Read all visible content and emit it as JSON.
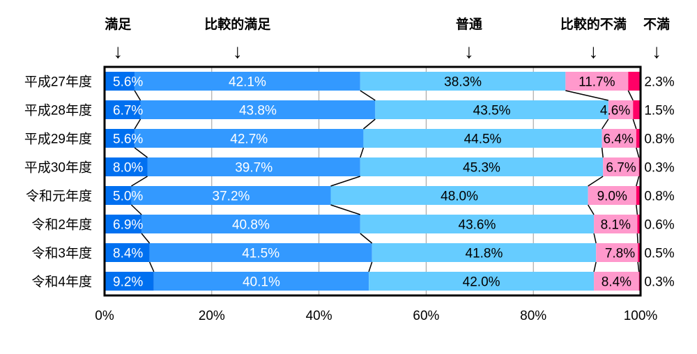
{
  "chart_data": {
    "type": "bar",
    "orientation": "horizontal",
    "stacked": true,
    "percent": true,
    "categories": [
      "平成27年度",
      "平成28年度",
      "平成29年度",
      "平成30年度",
      "令和元年度",
      "令和2年度",
      "令和3年度",
      "令和4年度"
    ],
    "series": [
      {
        "name": "満足",
        "color": "#0070F0",
        "values": [
          5.6,
          6.7,
          5.6,
          8.0,
          5.0,
          6.9,
          8.4,
          9.2
        ]
      },
      {
        "name": "比較的満足",
        "color": "#3399FF",
        "values": [
          42.1,
          43.8,
          42.7,
          39.7,
          37.2,
          40.8,
          41.5,
          40.1
        ]
      },
      {
        "name": "普通",
        "color": "#66CCFF",
        "values": [
          38.3,
          43.5,
          44.5,
          45.3,
          48.0,
          43.6,
          41.8,
          42.0
        ]
      },
      {
        "name": "比較的不満",
        "color": "#FF99CC",
        "values": [
          11.7,
          4.6,
          6.4,
          6.7,
          9.0,
          8.1,
          7.8,
          8.4
        ]
      },
      {
        "name": "不満",
        "color": "#FF0066",
        "values": [
          2.3,
          1.5,
          0.8,
          0.3,
          0.8,
          0.6,
          0.5,
          0.3
        ]
      }
    ],
    "data_labels": [
      [
        "5.6%",
        "42.1%",
        "38.3%",
        "11.7%",
        "2.3%"
      ],
      [
        "6.7%",
        "43.8%",
        "43.5%",
        "4.6%",
        "1.5%"
      ],
      [
        "5.6%",
        "42.7%",
        "44.5%",
        "6.4%",
        "0.8%"
      ],
      [
        "8.0%",
        "39.7%",
        "45.3%",
        "6.7%",
        "0.3%"
      ],
      [
        "5.0%",
        "37.2%",
        "48.0%",
        "9.0%",
        "0.8%"
      ],
      [
        "6.9%",
        "40.8%",
        "43.6%",
        "8.1%",
        "0.6%"
      ],
      [
        "8.4%",
        "41.5%",
        "41.8%",
        "7.8%",
        "0.5%"
      ],
      [
        "9.2%",
        "40.1%",
        "42.0%",
        "8.4%",
        "0.3%"
      ]
    ],
    "xlim": [
      0,
      100
    ],
    "xticks": [
      "0%",
      "20%",
      "40%",
      "60%",
      "80%",
      "100%"
    ],
    "grid": true,
    "series_lines": true,
    "legend": "top",
    "legend_headers": [
      {
        "label": "満足",
        "pos": 2.5
      },
      {
        "label": "比較的満足",
        "pos": 24.8
      },
      {
        "label": "普通",
        "pos": 68.0
      },
      {
        "label": "比較的不満",
        "pos": 91.2
      },
      {
        "label": "不満",
        "pos": 103.0
      }
    ],
    "arrow_glyph": "↓"
  }
}
